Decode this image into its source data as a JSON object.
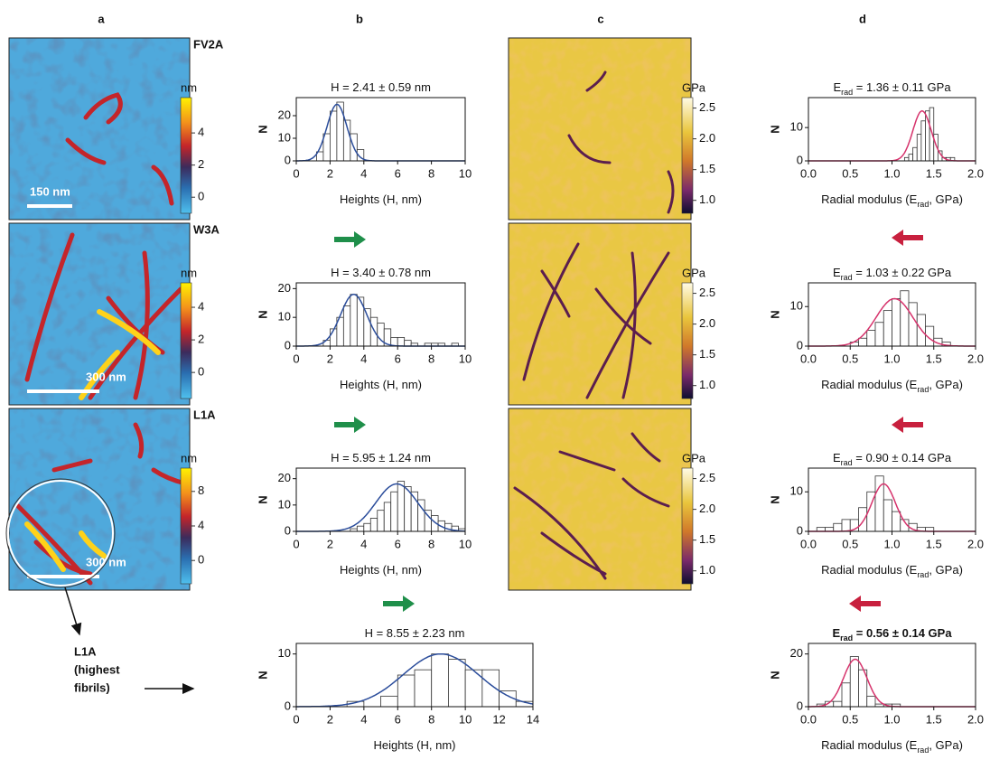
{
  "panel_labels": [
    "a",
    "b",
    "c",
    "d"
  ],
  "height_images": [
    {
      "label": "FV2A",
      "scale_bar": "150 nm",
      "colorbar": {
        "unit": "nm",
        "lim": [
          -1,
          6.2
        ],
        "ticks": [
          0,
          2,
          4
        ]
      }
    },
    {
      "label": "W3A",
      "scale_bar": "300 nm",
      "colorbar": {
        "unit": "nm",
        "lim": [
          -1.6,
          5.5
        ],
        "ticks": [
          0,
          2,
          4
        ]
      }
    },
    {
      "label": "L1A",
      "scale_bar": "300 nm",
      "colorbar": {
        "unit": "nm",
        "lim": [
          -2.7,
          10.7
        ],
        "ticks": [
          0,
          4,
          8
        ]
      }
    }
  ],
  "modulus_images": [
    {
      "colorbar": {
        "unit": "GPa",
        "lim": [
          0.79,
          2.67
        ],
        "ticks": [
          {
            "value": 1,
            "label": "1.0"
          },
          1.5,
          {
            "value": 2,
            "label": "2.0"
          },
          2.5
        ]
      }
    },
    {
      "colorbar": {
        "unit": "GPa",
        "lim": [
          0.79,
          2.67
        ],
        "ticks": [
          {
            "value": 1,
            "label": "1.0"
          },
          1.5,
          {
            "value": 2,
            "label": "2.0"
          },
          2.5
        ]
      }
    },
    {
      "colorbar": {
        "unit": "GPa",
        "lim": [
          0.79,
          2.67
        ],
        "ticks": [
          {
            "value": 1,
            "label": "1.0"
          },
          1.5,
          {
            "value": 2,
            "label": "2.0"
          },
          2.5
        ]
      }
    }
  ],
  "annotation": {
    "lines": [
      "L1A",
      "(highest",
      "fibrils)"
    ]
  },
  "chart_data": [
    {
      "type": "histogram",
      "title": [
        {
          "text": "H = 2.41 ± 0.59 nm"
        }
      ],
      "x_label": [
        {
          "text": "Heights (H, nm)"
        }
      ],
      "y_label": "N",
      "bins": [
        1.2,
        1.6,
        2.0,
        2.4,
        2.8,
        3.2,
        3.6,
        4.0
      ],
      "values": [
        4,
        12,
        22,
        26,
        18,
        12,
        5
      ],
      "color": "#ffffff",
      "edge_color": "#333333",
      "fit": {
        "mean": 2.41,
        "sd": 0.59,
        "amplitude": 25,
        "color": "#2b4d9b"
      },
      "xlim": [
        0,
        10
      ],
      "ylim": [
        0,
        28
      ],
      "xticks": [
        0,
        2,
        4,
        6,
        8,
        10
      ],
      "yticks": [
        0,
        10,
        20
      ]
    },
    {
      "type": "histogram",
      "title": [
        {
          "text": "H = 3.40 ± 0.78 nm"
        }
      ],
      "x_label": [
        {
          "text": "Heights (H, nm)"
        }
      ],
      "y_label": "N",
      "bins": [
        1.6,
        2.0,
        2.4,
        2.8,
        3.2,
        3.6,
        4.0,
        4.4,
        4.8,
        5.2,
        5.6,
        6.0,
        6.4,
        6.8,
        7.2,
        7.6,
        8.0,
        8.4,
        8.8,
        9.2,
        9.6
      ],
      "values": [
        2,
        6,
        10,
        14,
        18,
        17,
        13,
        10,
        8,
        6,
        3,
        3,
        2,
        1,
        0,
        1,
        1,
        1,
        0,
        1
      ],
      "color": "#ffffff",
      "edge_color": "#333333",
      "fit": {
        "mean": 3.4,
        "sd": 0.78,
        "amplitude": 18,
        "color": "#2b4d9b"
      },
      "xlim": [
        0,
        10
      ],
      "ylim": [
        0,
        22
      ],
      "xticks": [
        0,
        2,
        4,
        6,
        8,
        10
      ],
      "yticks": [
        0,
        10,
        20
      ]
    },
    {
      "type": "histogram",
      "title": [
        {
          "text": "H = 5.95 ± 1.24 nm"
        }
      ],
      "x_label": [
        {
          "text": "Heights (H, nm)"
        }
      ],
      "y_label": "N",
      "bins": [
        3.2,
        3.6,
        4.0,
        4.4,
        4.8,
        5.2,
        5.6,
        6.0,
        6.4,
        6.8,
        7.2,
        7.6,
        8.0,
        8.4,
        8.8,
        9.2,
        9.6,
        10.0
      ],
      "values": [
        1,
        2,
        3,
        5,
        8,
        11,
        15,
        19,
        17,
        15,
        12,
        8,
        6,
        4,
        3,
        2,
        1
      ],
      "color": "#ffffff",
      "edge_color": "#333333",
      "fit": {
        "mean": 5.95,
        "sd": 1.24,
        "amplitude": 18,
        "color": "#2b4d9b"
      },
      "xlim": [
        0,
        10
      ],
      "ylim": [
        0,
        24
      ],
      "xticks": [
        0,
        2,
        4,
        6,
        8,
        10
      ],
      "yticks": [
        0,
        10,
        20
      ]
    },
    {
      "type": "histogram",
      "title": [
        {
          "text": "H = 8.55 ± 2.23 nm"
        }
      ],
      "x_label": [
        {
          "text": "Heights (H, nm)"
        }
      ],
      "y_label": "N",
      "bins": [
        3,
        4,
        5,
        6,
        7,
        8,
        9,
        10,
        11,
        12,
        13,
        14
      ],
      "values": [
        1,
        0,
        2,
        6,
        7,
        10,
        9,
        7,
        7,
        3,
        1
      ],
      "color": "#ffffff",
      "edge_color": "#333333",
      "fit": {
        "mean": 8.55,
        "sd": 2.23,
        "amplitude": 10,
        "color": "#2b4d9b"
      },
      "xlim": [
        0,
        14
      ],
      "ylim": [
        0,
        12
      ],
      "xticks": [
        0,
        2,
        4,
        6,
        8,
        10,
        12,
        14
      ],
      "yticks": [
        0,
        10
      ]
    },
    {
      "type": "histogram",
      "title": [
        {
          "text": "E"
        },
        {
          "text": "rad",
          "sub": true
        },
        {
          "text": " = 1.36 ± 0.11 GPa"
        }
      ],
      "x_label": [
        {
          "text": "Radial modulus (E"
        },
        {
          "text": "rad",
          "sub": true
        },
        {
          "text": ", GPa)"
        }
      ],
      "y_label": "N",
      "bins": [
        1.15,
        1.2,
        1.25,
        1.3,
        1.35,
        1.4,
        1.45,
        1.5,
        1.55,
        1.6,
        1.65,
        1.7,
        1.75
      ],
      "values": [
        1,
        2,
        4,
        8,
        12,
        15,
        16,
        8,
        3,
        1,
        1,
        1
      ],
      "color": "#ffffff",
      "edge_color": "#333333",
      "fit": {
        "mean": 1.36,
        "sd": 0.11,
        "amplitude": 15,
        "color": "#d6336c"
      },
      "xlim": [
        0,
        2
      ],
      "ylim": [
        0,
        19
      ],
      "xticks": [
        {
          "value": 0,
          "label": "0.0"
        },
        0.5,
        {
          "value": 1,
          "label": "1.0"
        },
        1.5,
        {
          "value": 2,
          "label": "2.0"
        }
      ],
      "yticks": [
        0,
        10
      ]
    },
    {
      "type": "histogram",
      "title": [
        {
          "text": "E"
        },
        {
          "text": "rad",
          "sub": true
        },
        {
          "text": " = 1.03 ± 0.22 GPa"
        }
      ],
      "x_label": [
        {
          "text": "Radial modulus (E"
        },
        {
          "text": "rad",
          "sub": true
        },
        {
          "text": ", GPa)"
        }
      ],
      "y_label": "N",
      "bins": [
        0.5,
        0.6,
        0.7,
        0.8,
        0.9,
        1.0,
        1.1,
        1.2,
        1.3,
        1.4,
        1.5,
        1.6,
        1.7
      ],
      "values": [
        1,
        2,
        4,
        6,
        9,
        12,
        14,
        11,
        8,
        5,
        2,
        1
      ],
      "color": "#ffffff",
      "edge_color": "#333333",
      "fit": {
        "mean": 1.03,
        "sd": 0.22,
        "amplitude": 12,
        "color": "#d6336c"
      },
      "xlim": [
        0,
        2
      ],
      "ylim": [
        0,
        16
      ],
      "xticks": [
        {
          "value": 0,
          "label": "0.0"
        },
        0.5,
        {
          "value": 1,
          "label": "1.0"
        },
        1.5,
        {
          "value": 2,
          "label": "2.0"
        }
      ],
      "yticks": [
        0,
        10
      ]
    },
    {
      "type": "histogram",
      "title": [
        {
          "text": "E"
        },
        {
          "text": "rad",
          "sub": true
        },
        {
          "text": " = 0.90 ± 0.14 GPa"
        }
      ],
      "x_label": [
        {
          "text": "Radial modulus (E"
        },
        {
          "text": "rad",
          "sub": true
        },
        {
          "text": ", GPa)"
        }
      ],
      "y_label": "N",
      "bins": [
        0,
        0.1,
        0.2,
        0.3,
        0.4,
        0.5,
        0.6,
        0.7,
        0.8,
        0.9,
        1.0,
        1.1,
        1.2,
        1.3,
        1.4,
        1.5,
        1.6
      ],
      "values": [
        0,
        1,
        1,
        2,
        3,
        3,
        6,
        10,
        14,
        8,
        5,
        3,
        2,
        1,
        1,
        0
      ],
      "color": "#ffffff",
      "edge_color": "#333333",
      "fit": {
        "mean": 0.9,
        "sd": 0.14,
        "amplitude": 12,
        "color": "#d6336c"
      },
      "xlim": [
        0,
        2
      ],
      "ylim": [
        0,
        16
      ],
      "xticks": [
        {
          "value": 0,
          "label": "0.0"
        },
        0.5,
        {
          "value": 1,
          "label": "1.0"
        },
        1.5,
        {
          "value": 2,
          "label": "2.0"
        }
      ],
      "yticks": [
        0,
        10
      ]
    },
    {
      "type": "histogram",
      "title": [
        {
          "text": "E"
        },
        {
          "text": "rad",
          "sub": true
        },
        {
          "text": " = 0.56 ± 0.14 GPa"
        }
      ],
      "title_bold": true,
      "x_label": [
        {
          "text": "Radial modulus (E"
        },
        {
          "text": "rad",
          "sub": true
        },
        {
          "text": ", GPa)"
        }
      ],
      "y_label": "N",
      "bins": [
        0.1,
        0.2,
        0.3,
        0.4,
        0.5,
        0.6,
        0.7,
        0.8,
        0.9,
        1.0,
        1.1,
        1.2,
        1.3
      ],
      "values": [
        1,
        2,
        2,
        9,
        19,
        14,
        4,
        1,
        1,
        1,
        0,
        0
      ],
      "color": "#ffffff",
      "edge_color": "#333333",
      "fit": {
        "mean": 0.56,
        "sd": 0.14,
        "amplitude": 18,
        "color": "#d6336c"
      },
      "xlim": [
        0,
        2
      ],
      "ylim": [
        0,
        24
      ],
      "xticks": [
        {
          "value": 0,
          "label": "0.0"
        },
        0.5,
        {
          "value": 1,
          "label": "1.0"
        },
        1.5,
        {
          "value": 2,
          "label": "2.0"
        }
      ],
      "yticks": [
        0,
        20
      ]
    }
  ]
}
